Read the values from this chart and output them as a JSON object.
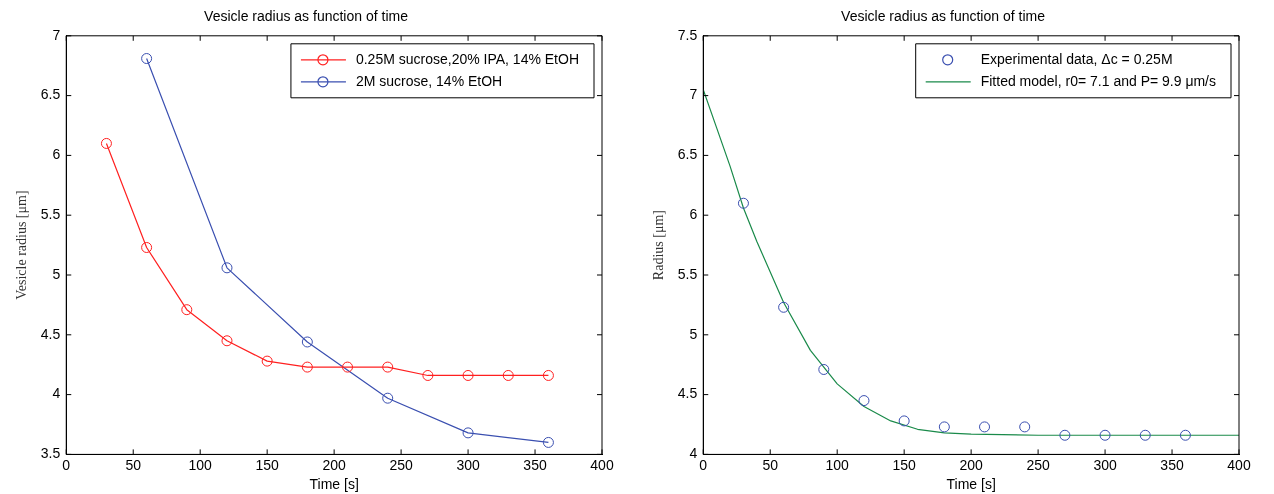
{
  "chart_data": [
    {
      "type": "line",
      "title": "Vesicle radius as function of time",
      "xlabel": "Time [s]",
      "ylabel": "Vesicle radius [μm]",
      "xlim": [
        0,
        400
      ],
      "xticks": [
        0,
        50,
        100,
        150,
        200,
        250,
        300,
        350,
        400
      ],
      "ylim": [
        3.5,
        7
      ],
      "yticks": [
        3.5,
        4,
        4.5,
        5,
        5.5,
        6,
        6.5,
        7
      ],
      "grid": false,
      "legend": "top right",
      "marker": "circle",
      "line_style": "solid",
      "series": [
        {
          "name": "0.25M sucrose,20% IPA, 14% EtOH",
          "color": "#ff2020",
          "x": [
            30,
            60,
            90,
            120,
            150,
            180,
            210,
            240,
            270,
            300,
            330,
            360
          ],
          "values": [
            6.1,
            5.23,
            4.71,
            4.45,
            4.28,
            4.23,
            4.23,
            4.23,
            4.16,
            4.16,
            4.16,
            4.16
          ]
        },
        {
          "name": "2M sucrose, 14% EtOH",
          "color": "#3a4fb0",
          "x": [
            60,
            120,
            180,
            240,
            300,
            360
          ],
          "values": [
            6.81,
            5.06,
            4.44,
            3.97,
            3.68,
            3.6
          ]
        }
      ]
    },
    {
      "type": "line",
      "title": "Vesicle radius as function of time",
      "xlabel": "Time [s]",
      "ylabel": "Radius [μm]",
      "xlim": [
        0,
        400
      ],
      "xticks": [
        0,
        50,
        100,
        150,
        200,
        250,
        300,
        350,
        400
      ],
      "ylim": [
        4,
        7.5
      ],
      "yticks": [
        4,
        4.5,
        5,
        5.5,
        6,
        6.5,
        7,
        7.5
      ],
      "grid": false,
      "legend": "top right",
      "series": [
        {
          "name": "Experimental data, Δc = 0.25M",
          "type": "scatter",
          "marker": "circle",
          "color": "#3a4fb0",
          "x": [
            30,
            60,
            90,
            120,
            150,
            180,
            210,
            240,
            270,
            300,
            330,
            360
          ],
          "values": [
            6.1,
            5.23,
            4.71,
            4.45,
            4.28,
            4.23,
            4.23,
            4.23,
            4.16,
            4.16,
            4.16,
            4.16
          ]
        },
        {
          "name": "Fitted model, r0= 7.1 and P= 9.9 μm/s",
          "type": "line",
          "marker": "none",
          "line_style": "solid",
          "color": "#1a8a4a",
          "x": [
            0,
            10,
            20,
            30,
            40,
            60,
            80,
            100,
            120,
            140,
            160,
            180,
            200,
            250,
            300,
            350,
            400
          ],
          "values": [
            7.05,
            6.73,
            6.41,
            6.06,
            5.78,
            5.27,
            4.87,
            4.59,
            4.4,
            4.28,
            4.21,
            4.18,
            4.17,
            4.16,
            4.16,
            4.16,
            4.16
          ]
        }
      ]
    }
  ]
}
